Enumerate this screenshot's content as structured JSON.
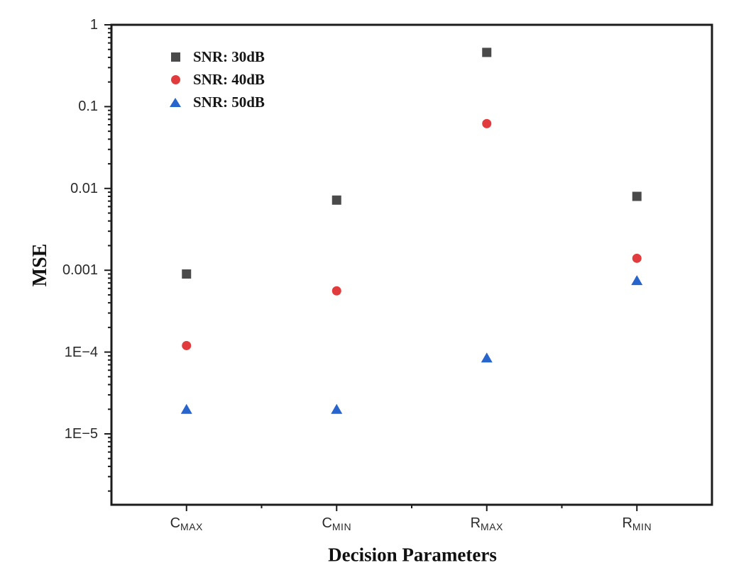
{
  "chart_data": {
    "type": "scatter",
    "xlabel": "Decision Parameters",
    "ylabel": "MSE",
    "y_scale": "log",
    "ylim": [
      1.4e-06,
      1
    ],
    "grid": false,
    "legend_position": "top-left-inside",
    "axis_color": "#1c1c1c",
    "tick_label_color": "#2a2a2a",
    "y_major_ticks": [
      {
        "value": 1,
        "label": "1"
      },
      {
        "value": 0.1,
        "label": "0.1"
      },
      {
        "value": 0.01,
        "label": "0.01"
      },
      {
        "value": 0.001,
        "label": "0.001"
      },
      {
        "value": 0.0001,
        "label": "1E−4"
      },
      {
        "value": 1e-05,
        "label": "1E−5"
      }
    ],
    "categories": [
      {
        "main": "C",
        "sub": "MAX"
      },
      {
        "main": "C",
        "sub": "MIN"
      },
      {
        "main": "R",
        "sub": "MAX"
      },
      {
        "main": "R",
        "sub": "MIN"
      }
    ],
    "series": [
      {
        "name": "SNR: 30dB",
        "marker": "square",
        "color": "#4a4a4a",
        "values": [
          0.0009,
          0.0072,
          0.46,
          0.008
        ]
      },
      {
        "name": "SNR: 40dB",
        "marker": "circle",
        "color": "#e23b3d",
        "values": [
          0.00012,
          0.00056,
          0.062,
          0.0014
        ]
      },
      {
        "name": "SNR: 50dB",
        "marker": "triangle",
        "color": "#2765cd",
        "values": [
          2e-05,
          2e-05,
          8.5e-05,
          0.00075
        ]
      }
    ]
  }
}
